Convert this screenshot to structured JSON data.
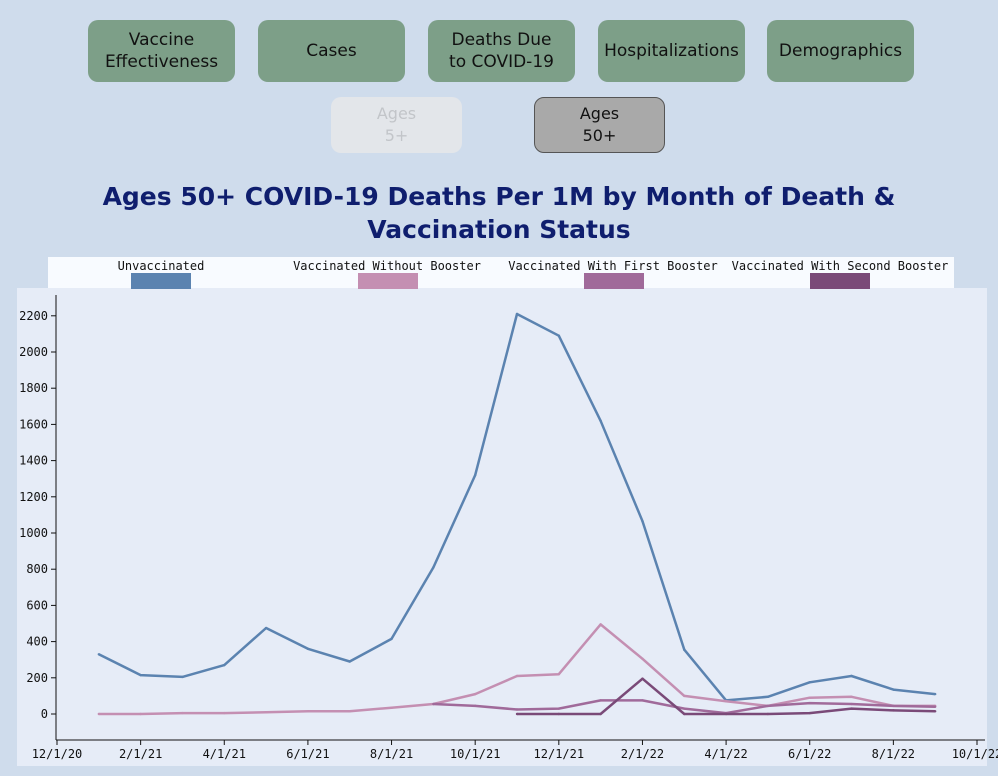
{
  "nav": {
    "buttons": [
      {
        "label": "Vaccine\nEffectiveness"
      },
      {
        "label": "Cases"
      },
      {
        "label": "Deaths Due\nto COVID-19"
      },
      {
        "label": "Hospitalizations"
      },
      {
        "label": "Demographics"
      }
    ]
  },
  "age_toggle": {
    "ages5": {
      "label": "Ages\n5+",
      "state": "disabled"
    },
    "ages50": {
      "label": "Ages\n50+",
      "state": "selected"
    }
  },
  "colors": {
    "unvaccinated": "#5b83b0",
    "no_booster": "#c48fb2",
    "first_booster": "#a06a9a",
    "second_booster": "#7a4a78"
  },
  "chart_data": {
    "type": "line",
    "title": "Ages 50+ COVID-19 Deaths Per 1M by Month of Death & Vaccination Status",
    "xlabel": "",
    "ylabel": "",
    "ylim": [
      -100,
      2300
    ],
    "y_ticks": [
      0,
      200,
      400,
      600,
      800,
      1000,
      1200,
      1400,
      1600,
      1800,
      2000,
      2200
    ],
    "x_range": [
      0,
      22
    ],
    "x_ticks": [
      {
        "label": "12/1/20",
        "x": 0
      },
      {
        "label": "2/1/21",
        "x": 2
      },
      {
        "label": "4/1/21",
        "x": 4
      },
      {
        "label": "6/1/21",
        "x": 6
      },
      {
        "label": "8/1/21",
        "x": 8
      },
      {
        "label": "10/1/21",
        "x": 10
      },
      {
        "label": "12/1/21",
        "x": 12
      },
      {
        "label": "2/1/22",
        "x": 14
      },
      {
        "label": "4/1/22",
        "x": 16
      },
      {
        "label": "6/1/22",
        "x": 18
      },
      {
        "label": "8/1/22",
        "x": 20
      },
      {
        "label": "10/1/22",
        "x": 22
      }
    ],
    "legend": [
      "Unvaccinated",
      "Vaccinated Without Booster",
      "Vaccinated With First Booster",
      "Vaccinated With Second Booster"
    ],
    "series": [
      {
        "name": "Unvaccinated",
        "key": "unvaccinated",
        "x": [
          1,
          2,
          3,
          4,
          5,
          6,
          7,
          8,
          9,
          10,
          11,
          12,
          13,
          14,
          15,
          16,
          17,
          18,
          19,
          20,
          21
        ],
        "values": [
          330,
          215,
          205,
          270,
          475,
          360,
          290,
          415,
          810,
          1320,
          2210,
          2090,
          1620,
          1065,
          355,
          75,
          95,
          175,
          210,
          135,
          110
        ]
      },
      {
        "name": "Vaccinated Without Booster",
        "key": "no_booster",
        "x": [
          1,
          2,
          3,
          4,
          5,
          6,
          7,
          8,
          9,
          10,
          11,
          12,
          13,
          14,
          15,
          16,
          17,
          18,
          19,
          20,
          21
        ],
        "values": [
          0,
          0,
          5,
          5,
          10,
          15,
          15,
          35,
          55,
          110,
          210,
          220,
          495,
          305,
          100,
          70,
          45,
          90,
          95,
          45,
          45
        ]
      },
      {
        "name": "Vaccinated With First Booster",
        "key": "first_booster",
        "x": [
          9,
          10,
          11,
          12,
          13,
          14,
          15,
          16,
          17,
          18,
          19,
          20,
          21
        ],
        "values": [
          55,
          45,
          25,
          30,
          75,
          75,
          30,
          5,
          45,
          60,
          55,
          45,
          40
        ]
      },
      {
        "name": "Vaccinated With Second Booster",
        "key": "second_booster",
        "x": [
          11,
          12,
          13,
          14,
          15,
          16,
          17,
          18,
          19,
          20,
          21
        ],
        "values": [
          0,
          0,
          0,
          195,
          0,
          0,
          0,
          5,
          30,
          20,
          15
        ]
      }
    ]
  }
}
